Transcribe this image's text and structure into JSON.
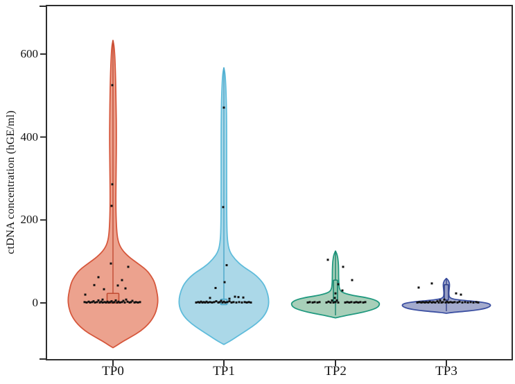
{
  "figure": {
    "background": "#ffffff",
    "frame_color": "#2d2d2d",
    "point_color": "#111111"
  },
  "chart_data": {
    "type": "violin",
    "title": "",
    "xlabel": "",
    "ylabel": "ctDNA concentration (hGE/ml)",
    "ylim": [
      -137,
      717
    ],
    "yticks": [
      0,
      200,
      400,
      600
    ],
    "ytick_labels": [
      "0",
      "200",
      "400",
      "600"
    ],
    "grid": false,
    "legend": "none",
    "categories": [
      {
        "label": "TP0",
        "fill": "#ECA28E",
        "stroke": "#D6573C",
        "inner": "#C04B32",
        "box_fill": "#E8937B",
        "max_value": 633,
        "profile": [
          [
            633,
            0
          ],
          [
            615,
            2
          ],
          [
            560,
            3.5
          ],
          [
            480,
            4.5
          ],
          [
            400,
            5
          ],
          [
            320,
            4.5
          ],
          [
            240,
            4
          ],
          [
            180,
            5
          ],
          [
            150,
            7
          ],
          [
            130,
            12
          ],
          [
            112,
            22
          ],
          [
            95,
            36
          ],
          [
            80,
            48
          ],
          [
            65,
            55
          ],
          [
            50,
            60
          ],
          [
            30,
            63
          ],
          [
            10,
            65
          ],
          [
            -10,
            64
          ],
          [
            -30,
            60
          ],
          [
            -50,
            52
          ],
          [
            -68,
            40
          ],
          [
            -82,
            26
          ],
          [
            -93,
            14
          ],
          [
            -102,
            6
          ],
          [
            -108,
            0
          ]
        ],
        "box": {
          "lo": 0,
          "hi": 23,
          "width": 17
        },
        "center_line": {
          "from": 633,
          "to": 0
        },
        "points": [
          [
            -1,
            525
          ],
          [
            -1,
            286
          ],
          [
            -2,
            234
          ],
          [
            -3,
            95
          ],
          [
            22,
            87
          ],
          [
            -21,
            62
          ],
          [
            13,
            55
          ],
          [
            -27,
            43
          ],
          [
            7,
            42
          ],
          [
            18,
            35
          ],
          [
            -13,
            33
          ],
          [
            -40,
            20
          ],
          [
            -15,
            8
          ],
          [
            -41,
            2
          ],
          [
            -38,
            1
          ],
          [
            -35,
            3
          ],
          [
            -33,
            1
          ],
          [
            -30,
            2
          ],
          [
            -28,
            4
          ],
          [
            -26,
            1
          ],
          [
            -23,
            2
          ],
          [
            -21,
            6
          ],
          [
            -19,
            1
          ],
          [
            -17,
            3
          ],
          [
            -15,
            1
          ],
          [
            -12,
            2
          ],
          [
            -10,
            1
          ],
          [
            -8,
            3
          ],
          [
            -6,
            1
          ],
          [
            -4,
            2
          ],
          [
            -2,
            4
          ],
          [
            0,
            1
          ],
          [
            2,
            2
          ],
          [
            4,
            6
          ],
          [
            6,
            1
          ],
          [
            8,
            3
          ],
          [
            10,
            1
          ],
          [
            13,
            2
          ],
          [
            15,
            5
          ],
          [
            17,
            1
          ],
          [
            19,
            8
          ],
          [
            21,
            3
          ],
          [
            24,
            1
          ],
          [
            26,
            2
          ],
          [
            28,
            5
          ],
          [
            31,
            1
          ],
          [
            33,
            2
          ],
          [
            36,
            1
          ],
          [
            39,
            2
          ]
        ]
      },
      {
        "label": "TP1",
        "fill": "#ABD8E8",
        "stroke": "#5FBCDB",
        "inner": "#4AA6C9",
        "box_fill": "#9FD2E4",
        "max_value": 567,
        "profile": [
          [
            567,
            0
          ],
          [
            550,
            2
          ],
          [
            490,
            3.5
          ],
          [
            420,
            4
          ],
          [
            340,
            4
          ],
          [
            260,
            4
          ],
          [
            190,
            4.2
          ],
          [
            150,
            5
          ],
          [
            124,
            8
          ],
          [
            105,
            16
          ],
          [
            88,
            27
          ],
          [
            70,
            44
          ],
          [
            50,
            56
          ],
          [
            30,
            62
          ],
          [
            8,
            65
          ],
          [
            -12,
            64
          ],
          [
            -32,
            58
          ],
          [
            -50,
            47
          ],
          [
            -65,
            34
          ],
          [
            -80,
            20
          ],
          [
            -92,
            9
          ],
          [
            -100,
            0
          ]
        ],
        "box": {
          "lo": -4,
          "hi": 9,
          "width": 9
        },
        "center_line": {
          "from": 567,
          "to": -4
        },
        "points": [
          [
            0,
            471
          ],
          [
            -1,
            231
          ],
          [
            4,
            91
          ],
          [
            1,
            50
          ],
          [
            -12,
            36
          ],
          [
            16,
            15
          ],
          [
            21,
            14
          ],
          [
            -20,
            12
          ],
          [
            28,
            13
          ],
          [
            8,
            10
          ],
          [
            -40,
            1
          ],
          [
            -37,
            2
          ],
          [
            -35,
            1
          ],
          [
            -33,
            3
          ],
          [
            -31,
            1
          ],
          [
            -29,
            2
          ],
          [
            -27,
            1
          ],
          [
            -25,
            3
          ],
          [
            -23,
            1
          ],
          [
            -20,
            2
          ],
          [
            -17,
            1
          ],
          [
            -14,
            2
          ],
          [
            -11,
            4
          ],
          [
            -8,
            1
          ],
          [
            -6,
            2
          ],
          [
            -4,
            5
          ],
          [
            -2,
            1
          ],
          [
            0,
            3
          ],
          [
            2,
            1
          ],
          [
            5,
            2
          ],
          [
            8,
            4
          ],
          [
            11,
            1
          ],
          [
            14,
            2
          ],
          [
            18,
            1
          ],
          [
            22,
            2
          ],
          [
            26,
            1
          ],
          [
            30,
            2
          ],
          [
            33,
            1
          ],
          [
            36,
            2
          ],
          [
            39,
            1
          ]
        ]
      },
      {
        "label": "TP2",
        "fill": "#A8CFB9",
        "stroke": "#20997F",
        "inner": "#17836E",
        "box_fill": "#8FC4AA",
        "max_value": 125,
        "profile": [
          [
            125,
            0
          ],
          [
            116,
            2.5
          ],
          [
            100,
            4
          ],
          [
            80,
            4.5
          ],
          [
            60,
            4.5
          ],
          [
            42,
            5
          ],
          [
            32,
            6
          ],
          [
            25,
            10
          ],
          [
            19,
            22
          ],
          [
            14,
            40
          ],
          [
            9,
            54
          ],
          [
            3,
            62
          ],
          [
            -4,
            64
          ],
          [
            -12,
            60
          ],
          [
            -19,
            48
          ],
          [
            -25,
            32
          ],
          [
            -30,
            16
          ],
          [
            -34,
            5
          ],
          [
            -36,
            0
          ]
        ],
        "box": {
          "lo": 4,
          "hi": 55,
          "width": 6
        },
        "center_line": {
          "from": 125,
          "to": -30
        },
        "points": [
          [
            -11,
            104
          ],
          [
            11,
            87
          ],
          [
            24,
            55
          ],
          [
            4,
            45
          ],
          [
            10,
            30
          ],
          [
            0,
            23
          ],
          [
            -40,
            1
          ],
          [
            -37,
            2
          ],
          [
            -33,
            1
          ],
          [
            -30,
            2
          ],
          [
            -26,
            1
          ],
          [
            -23,
            2
          ],
          [
            -13,
            1
          ],
          [
            -10,
            3
          ],
          [
            -7,
            1
          ],
          [
            -5,
            6
          ],
          [
            -3,
            1
          ],
          [
            -1,
            12
          ],
          [
            0,
            2
          ],
          [
            2,
            6
          ],
          [
            4,
            1
          ],
          [
            14,
            1
          ],
          [
            17,
            2
          ],
          [
            20,
            1
          ],
          [
            23,
            2
          ],
          [
            27,
            1
          ],
          [
            30,
            2
          ],
          [
            33,
            1
          ],
          [
            36,
            2
          ],
          [
            40,
            1
          ],
          [
            43,
            2
          ]
        ]
      },
      {
        "label": "TP3",
        "fill": "#A4ABCD",
        "stroke": "#3C50A2",
        "inner": "#32428C",
        "box_fill": "#959DC4",
        "max_value": 59,
        "profile": [
          [
            59,
            0
          ],
          [
            55,
            2.5
          ],
          [
            48,
            4.5
          ],
          [
            40,
            4.5
          ],
          [
            30,
            3.8
          ],
          [
            20,
            3.5
          ],
          [
            13,
            4.5
          ],
          [
            9,
            10
          ],
          [
            6,
            25
          ],
          [
            3,
            45
          ],
          [
            0,
            58
          ],
          [
            -4,
            64
          ],
          [
            -9,
            63
          ],
          [
            -14,
            55
          ],
          [
            -18,
            40
          ],
          [
            -21,
            22
          ],
          [
            -23,
            8
          ],
          [
            -25,
            0
          ]
        ],
        "box": {
          "lo": 7,
          "hi": 44,
          "width": 6
        },
        "center_line": {
          "from": 59,
          "to": -20
        },
        "points": [
          [
            -40,
            37
          ],
          [
            -21,
            47
          ],
          [
            14,
            23
          ],
          [
            21,
            20
          ],
          [
            -42,
            1
          ],
          [
            -39,
            2
          ],
          [
            -36,
            1
          ],
          [
            -34,
            2
          ],
          [
            -31,
            1
          ],
          [
            -29,
            2
          ],
          [
            -26,
            1
          ],
          [
            -24,
            3
          ],
          [
            -21,
            1
          ],
          [
            -19,
            2
          ],
          [
            -16,
            1
          ],
          [
            -13,
            4
          ],
          [
            -11,
            1
          ],
          [
            -9,
            6
          ],
          [
            -7,
            1
          ],
          [
            -5,
            2
          ],
          [
            -3,
            8
          ],
          [
            -1,
            1
          ],
          [
            1,
            3
          ],
          [
            3,
            1
          ],
          [
            6,
            2
          ],
          [
            9,
            1
          ],
          [
            12,
            2
          ],
          [
            16,
            1
          ],
          [
            19,
            3
          ],
          [
            23,
            1
          ],
          [
            27,
            2
          ],
          [
            31,
            1
          ],
          [
            35,
            2
          ],
          [
            39,
            1
          ],
          [
            43,
            2
          ],
          [
            46,
            1
          ]
        ]
      }
    ]
  }
}
